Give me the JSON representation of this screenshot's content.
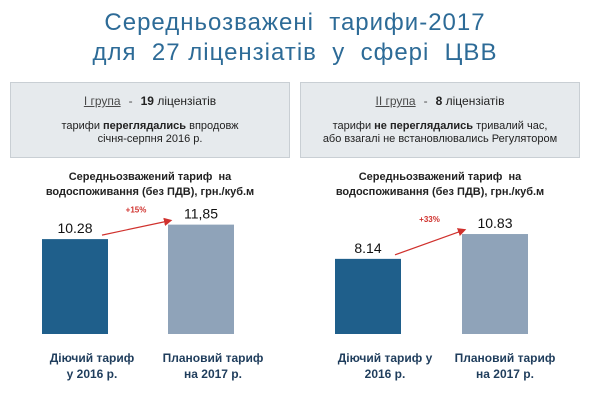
{
  "title": {
    "line1": "Середньозважені  тарифи-2017",
    "line2": "для  27 ліцензіатів  у  сфері  ЦВВ"
  },
  "groups": [
    {
      "group_label": "I група",
      "count_number": "19",
      "count_word": "ліцензіатів",
      "desc_line1_pre": "тарифи ",
      "desc_line1_bold": "переглядались",
      "desc_line1_post": " впродовж",
      "desc_line2": "січня-серпня 2016 р."
    },
    {
      "group_label": "II група",
      "count_number": "8",
      "count_word": "ліцензіатів",
      "desc_line1_pre": "тарифи ",
      "desc_line1_bold": "не переглядались",
      "desc_line1_post": " тривалий час,",
      "desc_line2": "або взагалі не встановлювались Регулятором"
    }
  ],
  "colors": {
    "title": "#2d6b97",
    "bar_current": "#1f5f8b",
    "bar_planned": "#8fa3b9",
    "arrow": "#d0312d"
  },
  "chart_data": [
    {
      "type": "bar",
      "title_line1": "Середньозважений тариф  на",
      "title_line2": "водоспоживання (без ПДВ), грн./куб.м",
      "categories": [
        "Діючий тариф у 2016 р.",
        "Плановий тариф на 2017 р."
      ],
      "category_lines": [
        [
          "Діючий тариф",
          "у 2016 р."
        ],
        [
          "Плановий тариф",
          "на 2017 р."
        ]
      ],
      "values": [
        10.28,
        11.85
      ],
      "value_labels": [
        "10.28",
        "11,85"
      ],
      "change_label": "+15%",
      "ylim": [
        0,
        13
      ]
    },
    {
      "type": "bar",
      "title_line1": "Середньозважений тариф  на",
      "title_line2": "водоспоживання (без ПДВ), грн./куб.м",
      "categories": [
        "Діючий тариф у 2016 р.",
        "Плановий тариф на 2017 р."
      ],
      "category_lines": [
        [
          "Діючий тариф у",
          "2016 р."
        ],
        [
          "Плановий тариф",
          "на 2017 р."
        ]
      ],
      "values": [
        8.14,
        10.83
      ],
      "value_labels": [
        "8.14",
        "10.83"
      ],
      "change_label": "+33%",
      "ylim": [
        0,
        13
      ]
    }
  ]
}
